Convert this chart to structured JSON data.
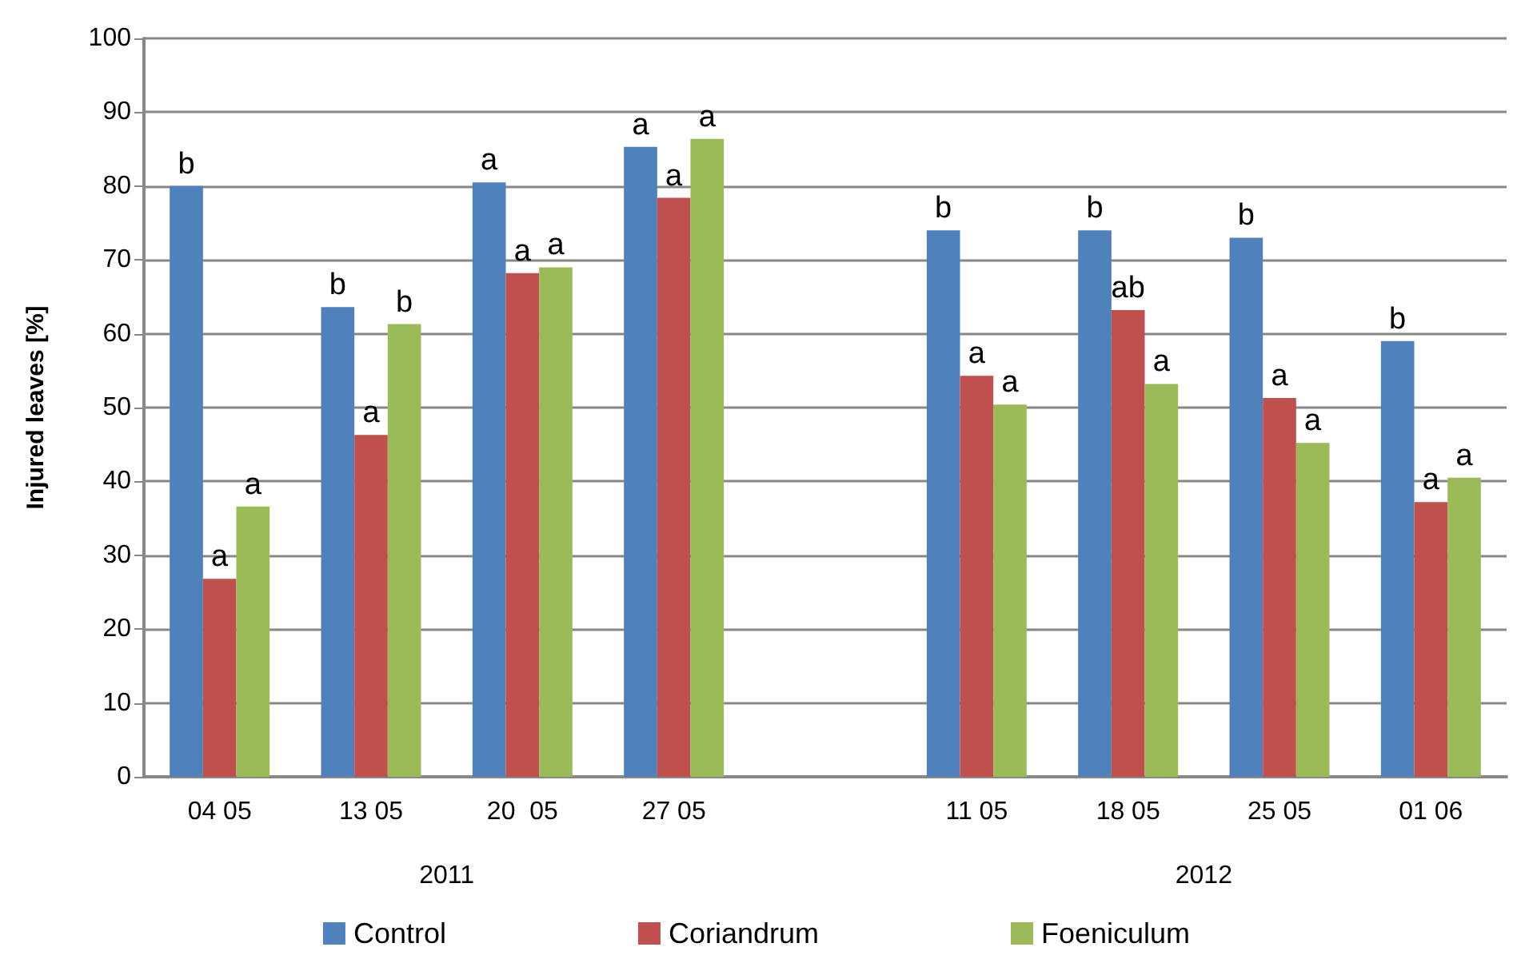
{
  "chart_data": {
    "type": "bar",
    "ylabel": "Injured leaves [%]",
    "categories": [
      "04 05",
      "13 05",
      "20  05",
      "27 05",
      null,
      "11 05",
      "18 05",
      "25 05",
      "01 06"
    ],
    "series": [
      {
        "name": "Control",
        "color": "#4f81bd",
        "values": [
          80,
          63.6,
          80.5,
          85.3,
          null,
          74,
          74,
          73,
          59
        ],
        "value_labels": [
          "b",
          "b",
          "a",
          "a",
          null,
          "b",
          "b",
          "b",
          "b"
        ]
      },
      {
        "name": "Coriandrum",
        "color": "#c0504d",
        "values": [
          26.8,
          46.3,
          68.2,
          78.4,
          null,
          54.3,
          63.2,
          51.3,
          37.2
        ],
        "value_labels": [
          "a",
          "a",
          "a",
          "a",
          null,
          "a",
          "ab",
          "a",
          "a"
        ]
      },
      {
        "name": "Foeniculum",
        "color": "#9bbb59",
        "values": [
          36.6,
          61.3,
          69,
          86.4,
          null,
          50.4,
          53.2,
          45.2,
          40.5
        ],
        "value_labels": [
          "a",
          "b",
          "a",
          "a",
          null,
          "a",
          "a",
          "a",
          "a"
        ]
      }
    ],
    "annotations": [
      "2011",
      "2012"
    ],
    "ylim": [
      0,
      100
    ],
    "yticks": [
      0,
      10,
      20,
      30,
      40,
      50,
      60,
      70,
      80,
      90,
      100
    ],
    "grid": "y",
    "legend": "bottom"
  }
}
